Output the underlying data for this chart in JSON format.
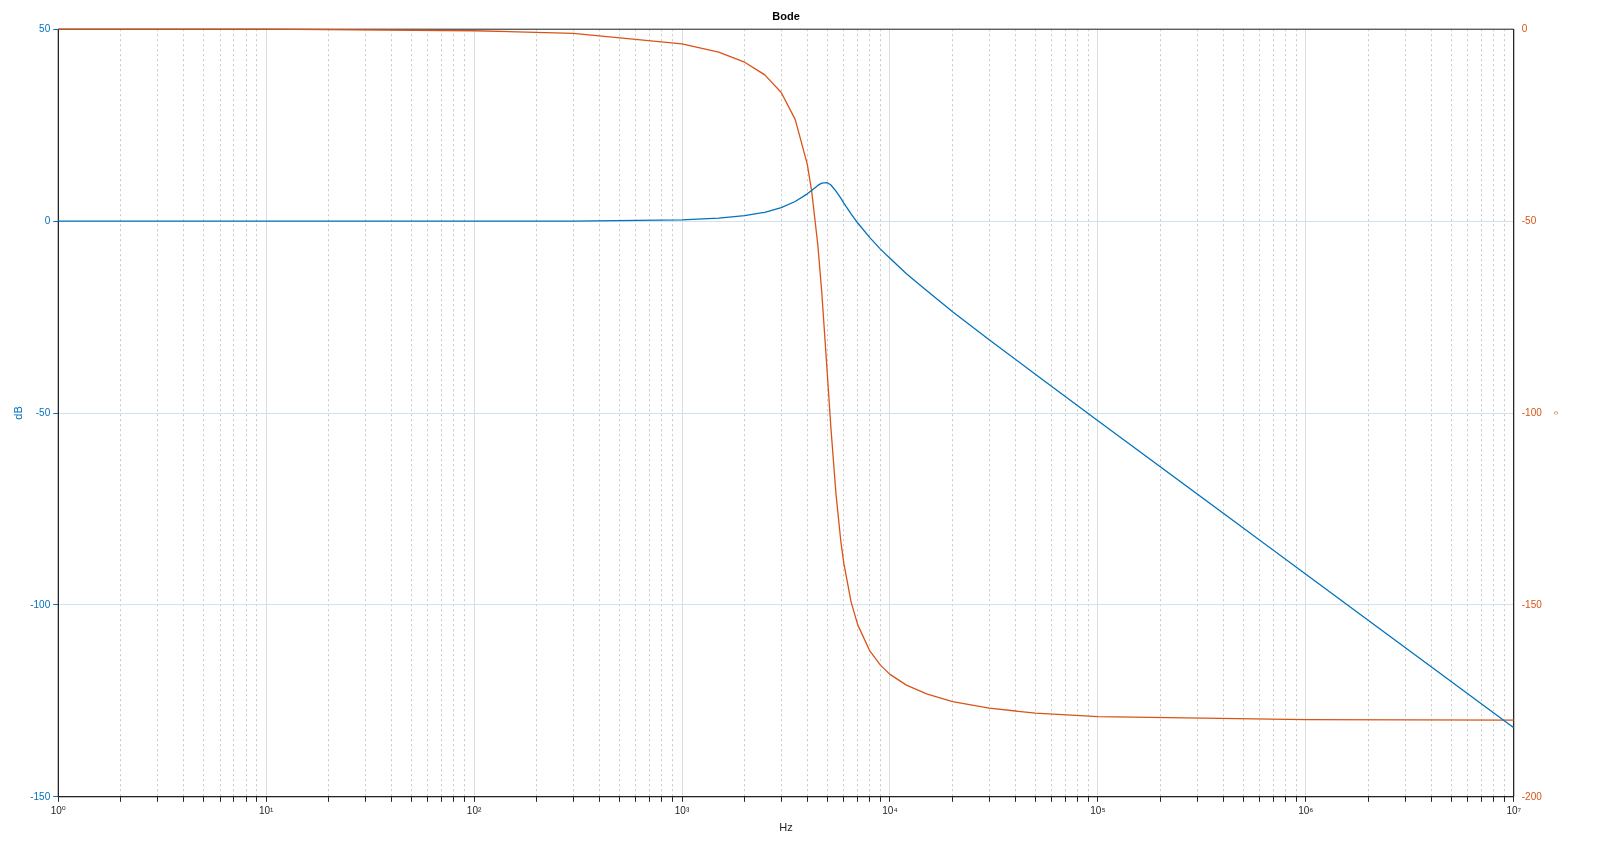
{
  "chart_data": {
    "type": "line",
    "title": "Bode",
    "xlabel": "Hz",
    "ylabel": "dB",
    "y2label": "°",
    "log": "x",
    "grid": true,
    "marker": "none",
    "line_style": "solid",
    "x": [
      1,
      10,
      100,
      300,
      1000,
      1500,
      2000,
      2500,
      3000,
      3500,
      4000,
      4200,
      4500,
      4700,
      5000,
      5200,
      5500,
      5800,
      6000,
      6500,
      7000,
      8000,
      9000,
      10000,
      12000,
      15000,
      20000,
      30000,
      50000,
      100000,
      1000000,
      10000000
    ],
    "series": [
      {
        "color": "#0072bd",
        "values": [
          0,
          0,
          0,
          0,
          0.3,
          0.8,
          1.4,
          2.3,
          3.5,
          5.1,
          7.1,
          8,
          9.3,
          9.9,
          10,
          9.4,
          7.8,
          6,
          4.7,
          1.9,
          -0.5,
          -4.3,
          -7.3,
          -9.7,
          -13.7,
          -18.1,
          -23.6,
          -30.9,
          -39.9,
          -52,
          -92,
          -132
        ]
      },
      {
        "color": "#d95319",
        "axis": "y2",
        "values": [
          0,
          0,
          -0.4,
          -1.1,
          -3.8,
          -6,
          -8.6,
          -11.9,
          -16.5,
          -23.5,
          -35.1,
          -42.1,
          -56.3,
          -68.6,
          -90,
          -103.9,
          -121.1,
          -133.3,
          -139.2,
          -149.2,
          -155.2,
          -162,
          -165.7,
          -168.1,
          -170.9,
          -173.2,
          -175.2,
          -176.9,
          -178.2,
          -179.1,
          -179.9,
          -180
        ]
      }
    ],
    "xlim": [
      1,
      10000000
    ],
    "xticks": [
      {
        "value": 1,
        "label": "10⁰"
      },
      {
        "value": 2,
        "label": null
      },
      {
        "value": 3,
        "label": null
      },
      {
        "value": 4,
        "label": null
      },
      {
        "value": 5,
        "label": null
      },
      {
        "value": 6,
        "label": null
      },
      {
        "value": 7,
        "label": null
      },
      {
        "value": 8,
        "label": null
      },
      {
        "value": 9,
        "label": null
      },
      {
        "value": 10,
        "label": "10¹"
      },
      {
        "value": 20,
        "label": null
      },
      {
        "value": 30,
        "label": null
      },
      {
        "value": 40,
        "label": null
      },
      {
        "value": 50,
        "label": null
      },
      {
        "value": 60,
        "label": null
      },
      {
        "value": 70,
        "label": null
      },
      {
        "value": 80,
        "label": null
      },
      {
        "value": 90,
        "label": null
      },
      {
        "value": 100,
        "label": "10²"
      },
      {
        "value": 200,
        "label": null
      },
      {
        "value": 300,
        "label": null
      },
      {
        "value": 400,
        "label": null
      },
      {
        "value": 500,
        "label": null
      },
      {
        "value": 600,
        "label": null
      },
      {
        "value": 700,
        "label": null
      },
      {
        "value": 800,
        "label": null
      },
      {
        "value": 900,
        "label": null
      },
      {
        "value": 1000,
        "label": "10³"
      },
      {
        "value": 2000,
        "label": null
      },
      {
        "value": 3000,
        "label": null
      },
      {
        "value": 4000,
        "label": null
      },
      {
        "value": 5000,
        "label": null
      },
      {
        "value": 6000,
        "label": null
      },
      {
        "value": 7000,
        "label": null
      },
      {
        "value": 8000,
        "label": null
      },
      {
        "value": 9000,
        "label": null
      },
      {
        "value": 10000,
        "label": "10⁴"
      },
      {
        "value": 20000,
        "label": null
      },
      {
        "value": 30000,
        "label": null
      },
      {
        "value": 40000,
        "label": null
      },
      {
        "value": 50000,
        "label": null
      },
      {
        "value": 60000,
        "label": null
      },
      {
        "value": 70000,
        "label": null
      },
      {
        "value": 80000,
        "label": null
      },
      {
        "value": 90000,
        "label": null
      },
      {
        "value": 100000,
        "label": "10⁵"
      },
      {
        "value": 200000,
        "label": null
      },
      {
        "value": 300000,
        "label": null
      },
      {
        "value": 400000,
        "label": null
      },
      {
        "value": 500000,
        "label": null
      },
      {
        "value": 600000,
        "label": null
      },
      {
        "value": 700000,
        "label": null
      },
      {
        "value": 800000,
        "label": null
      },
      {
        "value": 900000,
        "label": null
      },
      {
        "value": 1000000,
        "label": "10⁶"
      },
      {
        "value": 2000000,
        "label": null
      },
      {
        "value": 3000000,
        "label": null
      },
      {
        "value": 4000000,
        "label": null
      },
      {
        "value": 5000000,
        "label": null
      },
      {
        "value": 6000000,
        "label": null
      },
      {
        "value": 7000000,
        "label": null
      },
      {
        "value": 8000000,
        "label": null
      },
      {
        "value": 9000000,
        "label": null
      },
      {
        "value": 10000000,
        "label": "10⁷"
      }
    ],
    "ylim": [
      -150,
      50
    ],
    "yticks": [
      -150,
      -100,
      -50,
      0,
      50
    ],
    "y2lim": [
      -200,
      0
    ],
    "y2ticks": [
      -200,
      -150,
      -100,
      -50,
      0
    ]
  }
}
